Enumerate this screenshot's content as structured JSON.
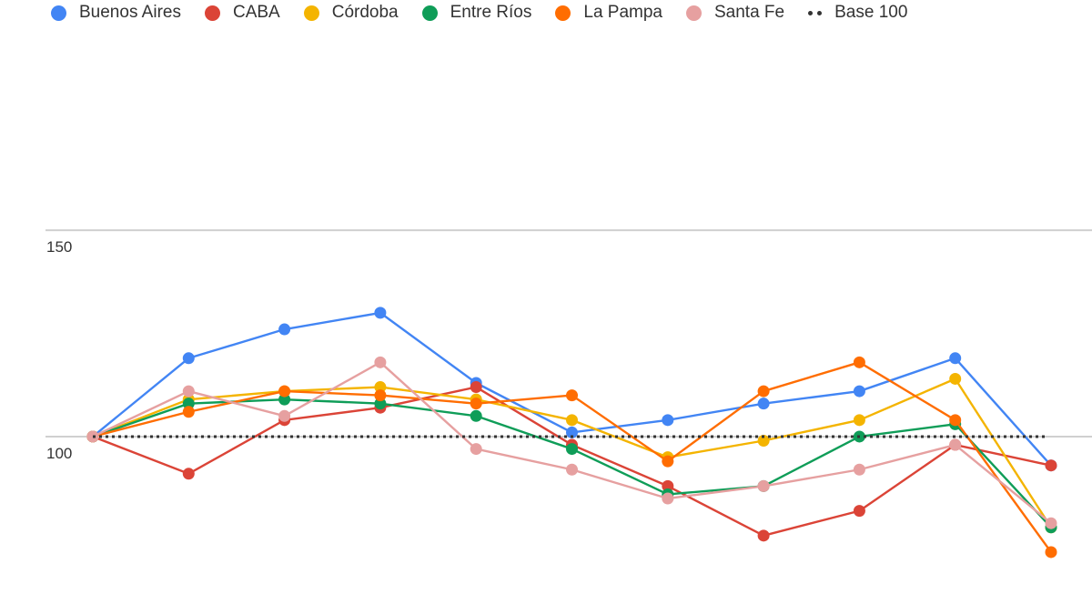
{
  "chart_data": {
    "type": "line",
    "y_ticks": [
      {
        "value": 150,
        "label": "150"
      },
      {
        "value": 100,
        "label": "100"
      }
    ],
    "ylim": [
      57,
      197
    ],
    "x": [
      0,
      1,
      2,
      3,
      4,
      5,
      6,
      7,
      8,
      9,
      10
    ],
    "grid": true,
    "legend_position": "top",
    "series": [
      {
        "name": "Buenos Aires",
        "color": "#4285f4",
        "values": [
          100,
          119,
          126,
          130,
          113,
          101,
          104,
          108,
          111,
          119,
          93
        ]
      },
      {
        "name": "CABA",
        "color": "#db4437",
        "values": [
          100,
          91,
          104,
          107,
          112,
          98,
          88,
          76,
          82,
          98,
          93
        ]
      },
      {
        "name": "Córdoba",
        "color": "#f4b400",
        "values": [
          100,
          109,
          111,
          112,
          109,
          104,
          95,
          99,
          104,
          114,
          78
        ]
      },
      {
        "name": "Entre Ríos",
        "color": "#0f9d58",
        "values": [
          100,
          108,
          109,
          108,
          105,
          97,
          86,
          88,
          100,
          103,
          78
        ]
      },
      {
        "name": "La Pampa",
        "color": "#ff6d01",
        "values": [
          100,
          106,
          111,
          110,
          108,
          110,
          94,
          111,
          118,
          104,
          72
        ]
      },
      {
        "name": "Santa Fe",
        "color": "#e6a0a0",
        "values": [
          100,
          111,
          105,
          118,
          97,
          92,
          85,
          88,
          92,
          98,
          79
        ]
      },
      {
        "name": "Base 100",
        "color": "#333333",
        "dotted": true,
        "values": [
          100,
          100,
          100,
          100,
          100,
          100,
          100,
          100,
          100,
          100,
          100
        ]
      }
    ]
  }
}
